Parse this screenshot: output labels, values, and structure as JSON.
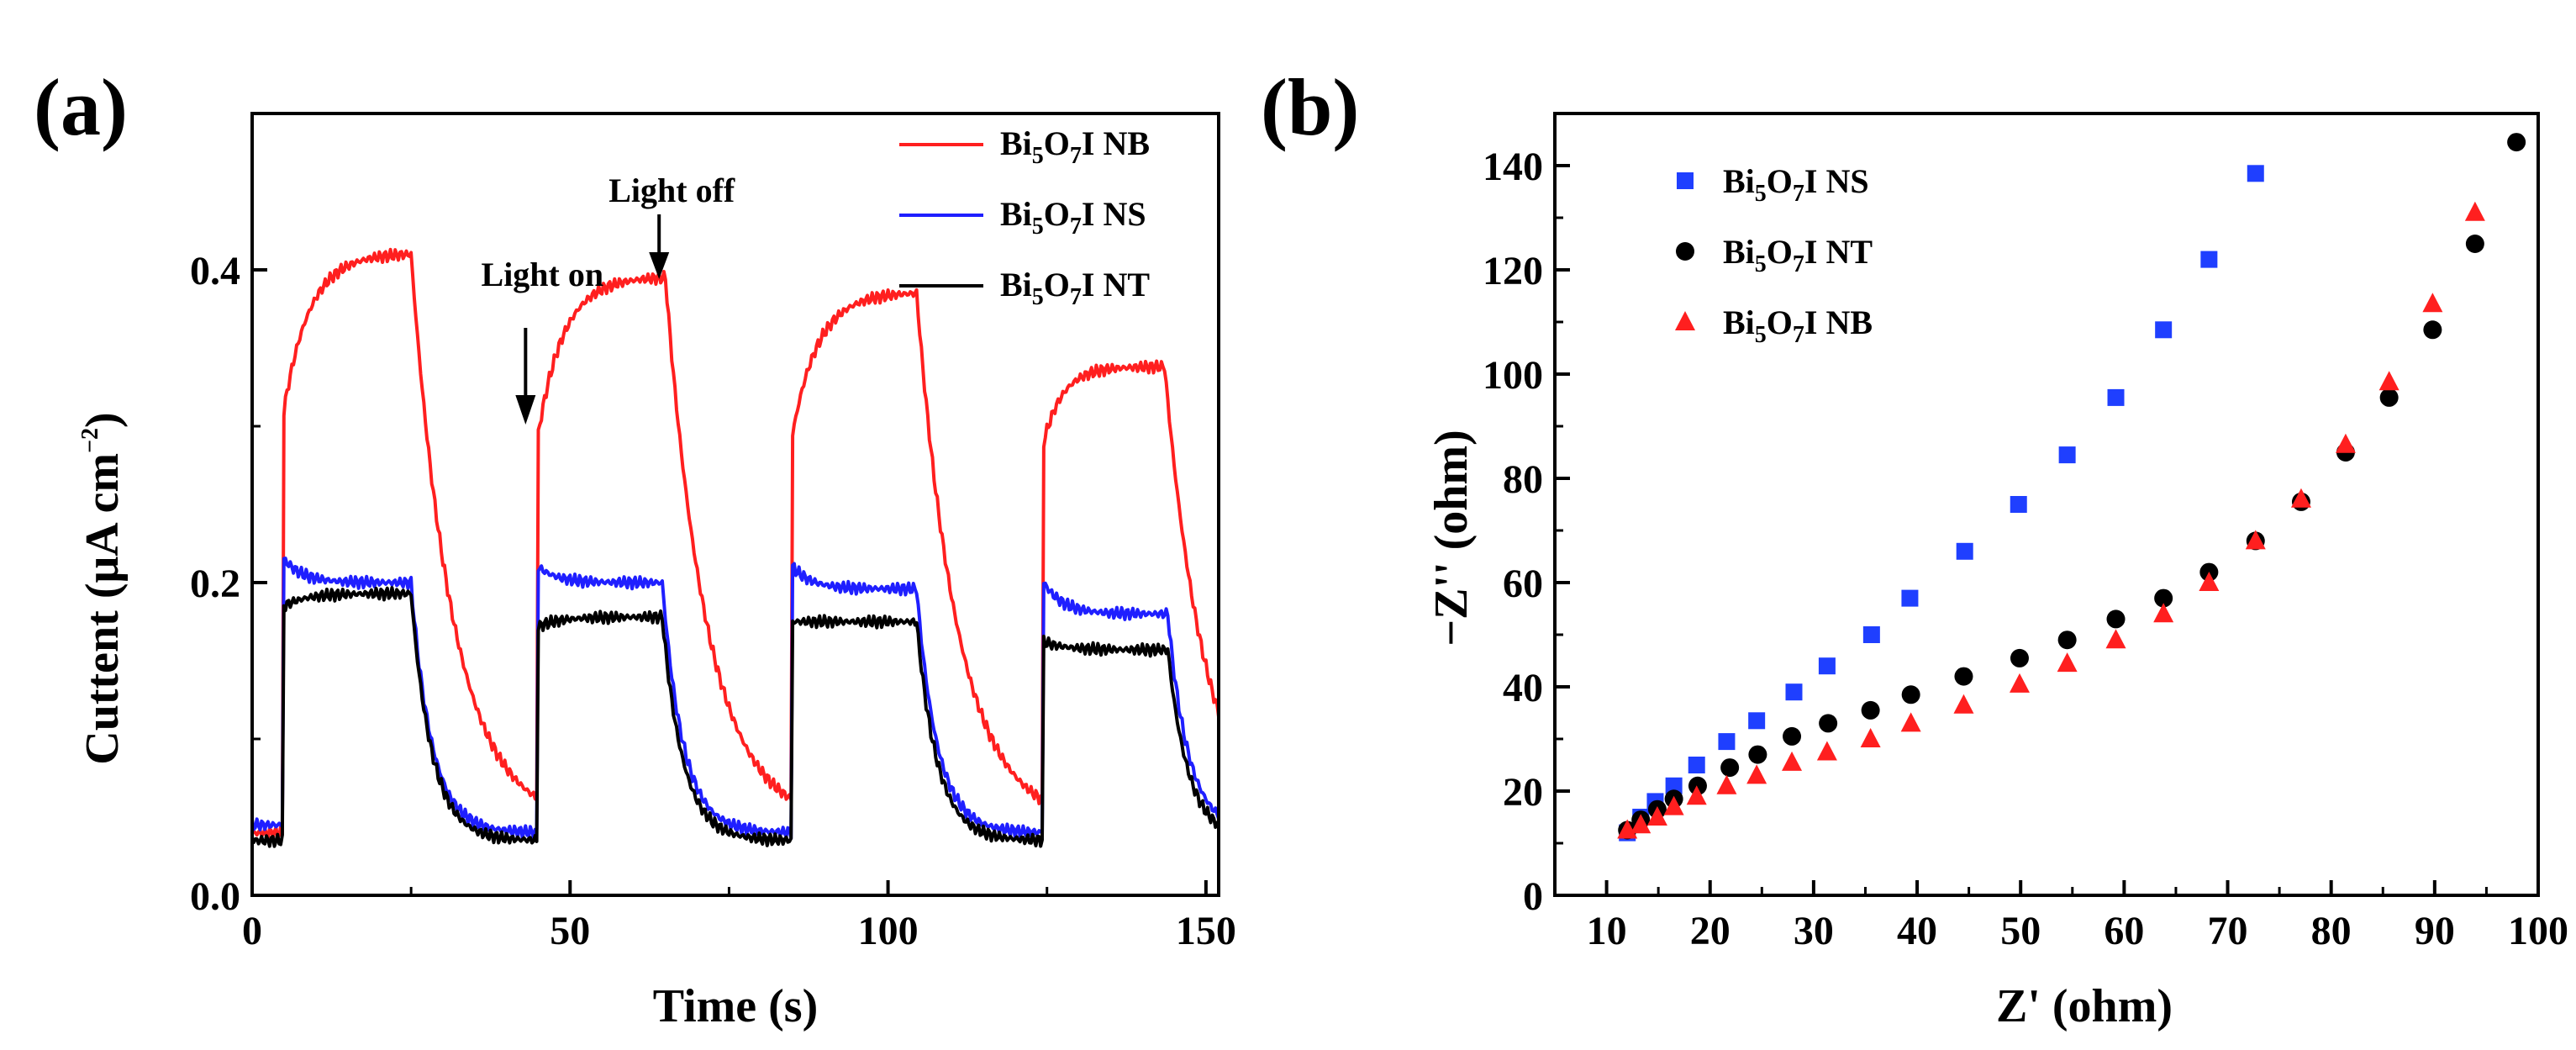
{
  "chart_data": [
    {
      "panel_label": "(a)",
      "type": "line",
      "xlabel": "Time (s)",
      "ylabel_parts": [
        "Cuttent",
        "(μA cm",
        "−2",
        ")"
      ],
      "xlim": [
        0,
        152
      ],
      "ylim": [
        0,
        0.5
      ],
      "xticks": [
        0,
        50,
        100,
        150
      ],
      "xtick_labels": [
        "0",
        "50",
        "100",
        "150"
      ],
      "yticks": [
        0,
        0.2,
        0.4
      ],
      "ytick_labels": [
        "0.0",
        "0.2",
        "0.4"
      ],
      "legend_position": "top-right",
      "annotations": [
        {
          "text": "Light on",
          "x": 43,
          "y": 0.4
        },
        {
          "text": "Light off",
          "x": 64,
          "y": 0.45
        }
      ],
      "series": [
        {
          "name": "NB",
          "legend_parts": [
            "Bi",
            "5",
            "O",
            "7",
            "I NB"
          ],
          "color": "#ff1f1f",
          "cycles": [
            {
              "on": 5,
              "off": 25,
              "base_start": 0.04,
              "peak": 0.41,
              "jump": 0.27,
              "tau_rise": 4.0,
              "tail_end": 0.045,
              "tau_decay": 6.5
            },
            {
              "on": 45,
              "off": 65,
              "base_start": 0.035,
              "peak": 0.395,
              "jump": 0.26,
              "tau_rise": 4.0,
              "tail_end": 0.045,
              "tau_decay": 6.5
            },
            {
              "on": 85,
              "off": 104.5,
              "base_start": 0.045,
              "peak": 0.385,
              "jump": 0.25,
              "tau_rise": 4.0,
              "tail_end": 0.045,
              "tau_decay": 6.5
            },
            {
              "on": 124.5,
              "off": 143.5,
              "base_start": 0.04,
              "peak": 0.338,
              "jump": 0.25,
              "tau_rise": 3.0,
              "tail_end": 0.035,
              "tau_decay": 6.5
            }
          ]
        },
        {
          "name": "NS",
          "legend_parts": [
            "Bi",
            "5",
            "O",
            "7",
            "I NS"
          ],
          "color": "#1f1fff",
          "cycles": [
            {
              "on": 5,
              "off": 25,
              "base_start": 0.045,
              "peak": 0.2,
              "jump": 0.17,
              "tau_rise": 3.0,
              "tail_end": 0.04,
              "tau_decay": 3.2
            },
            {
              "on": 45,
              "off": 64.5,
              "base_start": 0.04,
              "peak": 0.2,
              "jump": 0.17,
              "tau_rise": 3.0,
              "tail_end": 0.04,
              "tau_decay": 3.2
            },
            {
              "on": 85,
              "off": 104.5,
              "base_start": 0.04,
              "peak": 0.196,
              "jump": 0.17,
              "tau_rise": 3.0,
              "tail_end": 0.04,
              "tau_decay": 3.2
            },
            {
              "on": 124.5,
              "off": 144,
              "base_start": 0.04,
              "peak": 0.18,
              "jump": 0.16,
              "tau_rise": 3.0,
              "tail_end": 0.04,
              "tau_decay": 3.2
            }
          ]
        },
        {
          "name": "NT",
          "legend_parts": [
            "Bi",
            "5",
            "O",
            "7",
            "I NT"
          ],
          "color": "#000000",
          "cycles": [
            {
              "on": 5,
              "off": 25,
              "base_start": 0.035,
              "peak": 0.193,
              "jump": 0.15,
              "tau_rise": 3.5,
              "tail_end": 0.035,
              "tau_decay": 3.2
            },
            {
              "on": 45,
              "off": 64.5,
              "base_start": 0.032,
              "peak": 0.178,
              "jump": 0.14,
              "tau_rise": 3.5,
              "tail_end": 0.035,
              "tau_decay": 3.2
            },
            {
              "on": 85,
              "off": 104.5,
              "base_start": 0.035,
              "peak": 0.175,
              "jump": 0.14,
              "tau_rise": 3.5,
              "tail_end": 0.035,
              "tau_decay": 3.2
            },
            {
              "on": 124.5,
              "off": 144,
              "base_start": 0.032,
              "peak": 0.157,
              "jump": 0.13,
              "tau_rise": 3.5,
              "tail_end": 0.035,
              "tau_decay": 3.2
            }
          ]
        }
      ]
    },
    {
      "panel_label": "(b)",
      "type": "scatter",
      "xlabel": "Z' (ohm)",
      "ylabel": "−Z'' (ohm)",
      "xlim": [
        5,
        100
      ],
      "ylim": [
        0,
        150
      ],
      "xticks": [
        10,
        20,
        30,
        40,
        50,
        60,
        70,
        80,
        90,
        100
      ],
      "xtick_labels": [
        "10",
        "20",
        "30",
        "40",
        "50",
        "60",
        "70",
        "80",
        "90",
        "100"
      ],
      "yticks": [
        0,
        20,
        40,
        60,
        80,
        100,
        120,
        140
      ],
      "ytick_labels": [
        "0",
        "20",
        "40",
        "60",
        "80",
        "100",
        "120",
        "140"
      ],
      "legend_position": "top-left",
      "series": [
        {
          "name": "NS",
          "legend_parts": [
            "Bi",
            "5",
            "O",
            "7",
            "I NS"
          ],
          "color": "#1f3fff",
          "marker": "square",
          "x": [
            12,
            13.3,
            14.7,
            16.5,
            18.7,
            21.6,
            24.5,
            28.1,
            31.3,
            35.6,
            39.3,
            44.6,
            49.8,
            54.5,
            59.2,
            63.8,
            68.2,
            72.7
          ],
          "y": [
            12,
            15,
            18,
            21,
            25,
            29.5,
            33.5,
            39,
            44,
            50,
            57,
            66,
            75,
            84.5,
            95.5,
            108.5,
            122,
            138.5
          ]
        },
        {
          "name": "NT",
          "legend_parts": [
            "Bi",
            "5",
            "O",
            "7",
            "I NT"
          ],
          "color": "#000000",
          "marker": "circle",
          "x": [
            12,
            13.3,
            14.9,
            16.5,
            18.8,
            21.9,
            24.6,
            27.9,
            31.4,
            35.5,
            39.4,
            44.5,
            49.9,
            54.5,
            59.2,
            63.8,
            68.2,
            72.7,
            77.1,
            81.4,
            85.6,
            89.8,
            93.9,
            97.9
          ],
          "y": [
            12.5,
            14.5,
            16.5,
            18.5,
            21,
            24.5,
            27,
            30.5,
            33,
            35.5,
            38.5,
            42,
            45.5,
            49,
            53,
            57,
            62,
            68,
            75.5,
            85,
            95.5,
            108.5,
            125,
            144.5
          ]
        },
        {
          "name": "NB",
          "legend_parts": [
            "Bi",
            "5",
            "O",
            "7",
            "I NB"
          ],
          "color": "#ff1f1f",
          "marker": "triangle",
          "x": [
            12,
            13.3,
            14.9,
            16.5,
            18.7,
            21.6,
            24.5,
            27.9,
            31.3,
            35.5,
            39.4,
            44.5,
            49.9,
            54.5,
            59.2,
            63.8,
            68.2,
            72.7,
            77.1,
            81.4,
            85.6,
            89.8,
            93.9
          ],
          "y": [
            12.5,
            13.5,
            15,
            17,
            19,
            21,
            23,
            25.5,
            27.5,
            30,
            33,
            36.5,
            40.5,
            44.5,
            49,
            54,
            60,
            68,
            76,
            86.5,
            98.5,
            113.5,
            131
          ]
        }
      ]
    }
  ]
}
